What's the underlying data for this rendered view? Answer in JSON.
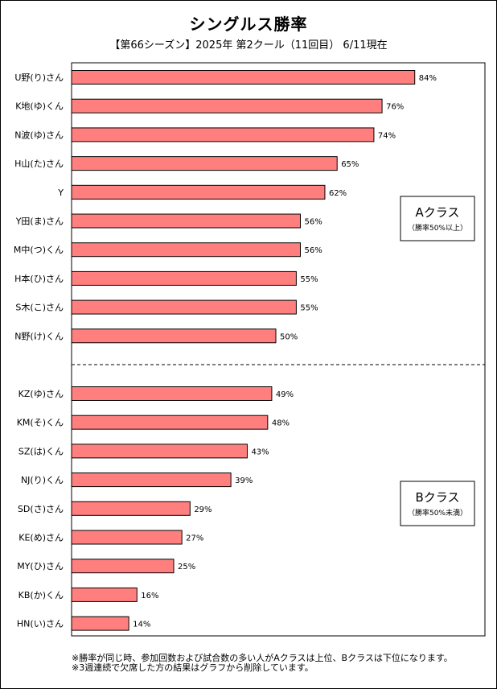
{
  "chart_data": {
    "type": "bar",
    "orientation": "horizontal",
    "title": "シングルス勝率",
    "subtitle": "【第66シーズン】2025年 第2クール（11回目） 6/11現在",
    "categories": [
      "U野(り)さん",
      "K地(ゆ)くん",
      "N波(ゆ)さん",
      "H山(た)さん",
      "Y",
      "Y田(ま)さん",
      "M中(つ)くん",
      "H本(ひ)さん",
      "S木(こ)さん",
      "N野(け)くん",
      "KZ(ゆ)さん",
      "KM(そ)くん",
      "SZ(は)くん",
      "NJ(り)くん",
      "SD(さ)さん",
      "KE(め)さん",
      "MY(ひ)さん",
      "KB(か)くん",
      "HN(い)さん"
    ],
    "values": [
      84,
      76,
      74,
      65,
      62,
      56,
      56,
      55,
      55,
      50,
      49,
      48,
      43,
      39,
      29,
      27,
      25,
      16,
      14
    ],
    "labels": [
      "84%",
      "76%",
      "74%",
      "65%",
      "62%",
      "56%",
      "56%",
      "55%",
      "55%",
      "50%",
      "49%",
      "48%",
      "43%",
      "39%",
      "29%",
      "27%",
      "25%",
      "16%",
      "14%"
    ],
    "xlim": [
      0,
      100
    ],
    "bar_color": "#ff7f7f",
    "groups": [
      {
        "name": "Aクラス",
        "note": "（勝率50%以上）",
        "count": 10
      },
      {
        "name": "Bクラス",
        "note": "（勝率50%未満）",
        "count": 9
      }
    ],
    "footnotes": [
      "※勝率が同じ時、参加回数および試合数の多い人がAクラスは上位、Bクラスは下位になります。",
      "※3週連続で欠席した方の結果はグラフから削除しています。"
    ]
  }
}
